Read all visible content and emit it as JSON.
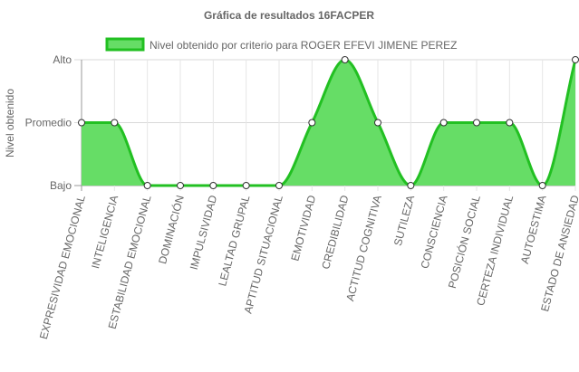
{
  "chart_data": {
    "type": "line",
    "title": "Gráfica de resultados 16FACPER",
    "ylabel": "Nivel obtenido",
    "xlabel": "",
    "y_levels": [
      "Bajo",
      "Promedio",
      "Alto"
    ],
    "ylim": [
      0,
      2
    ],
    "categories": [
      "EXPRESIVIDAD EMOCIONAL",
      "INTELIGENCIA",
      "ESTABILIDAD EMOCIONAL",
      "DOMINACIÓN",
      "IMPULSIVIDAD",
      "LEALTAD GRUPAL",
      "APTITUD SITUACIONAL",
      "EMOTIVIDAD",
      "CREDIBILIDAD",
      "ACTITUD COGNITIVA",
      "SUTILEZA",
      "CONSCIENCIA",
      "POSICIÓN SOCIAL",
      "CERTEZA INDIVIDUAL",
      "AUTOESTIMA",
      "ESTADO DE ANSIEDAD"
    ],
    "series": [
      {
        "name": "Nivel obtenido por criterio para ROGER EFEVI  JIMENE PEREZ",
        "values": [
          1,
          1,
          0,
          0,
          0,
          0,
          0,
          1,
          2,
          1,
          0,
          1,
          1,
          1,
          0,
          2
        ],
        "color": "#22c022",
        "fill": "#66dd66"
      }
    ],
    "grid": true,
    "legend_position": "top"
  }
}
